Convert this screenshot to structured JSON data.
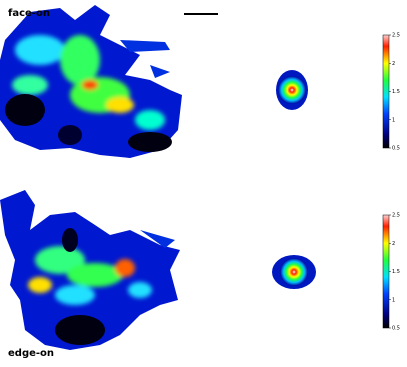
{
  "panels": [
    {
      "label": "face-on"
    },
    {
      "label": "edge-on"
    }
  ],
  "colorbars": [
    {
      "lim": [
        0.5,
        2.5
      ],
      "ticks": [
        0.5,
        1,
        1.5,
        2,
        2.5
      ]
    },
    {
      "lim": [
        0.5,
        2.5
      ],
      "ticks": [
        0.5,
        1,
        1.5,
        2,
        2.5
      ]
    }
  ]
}
